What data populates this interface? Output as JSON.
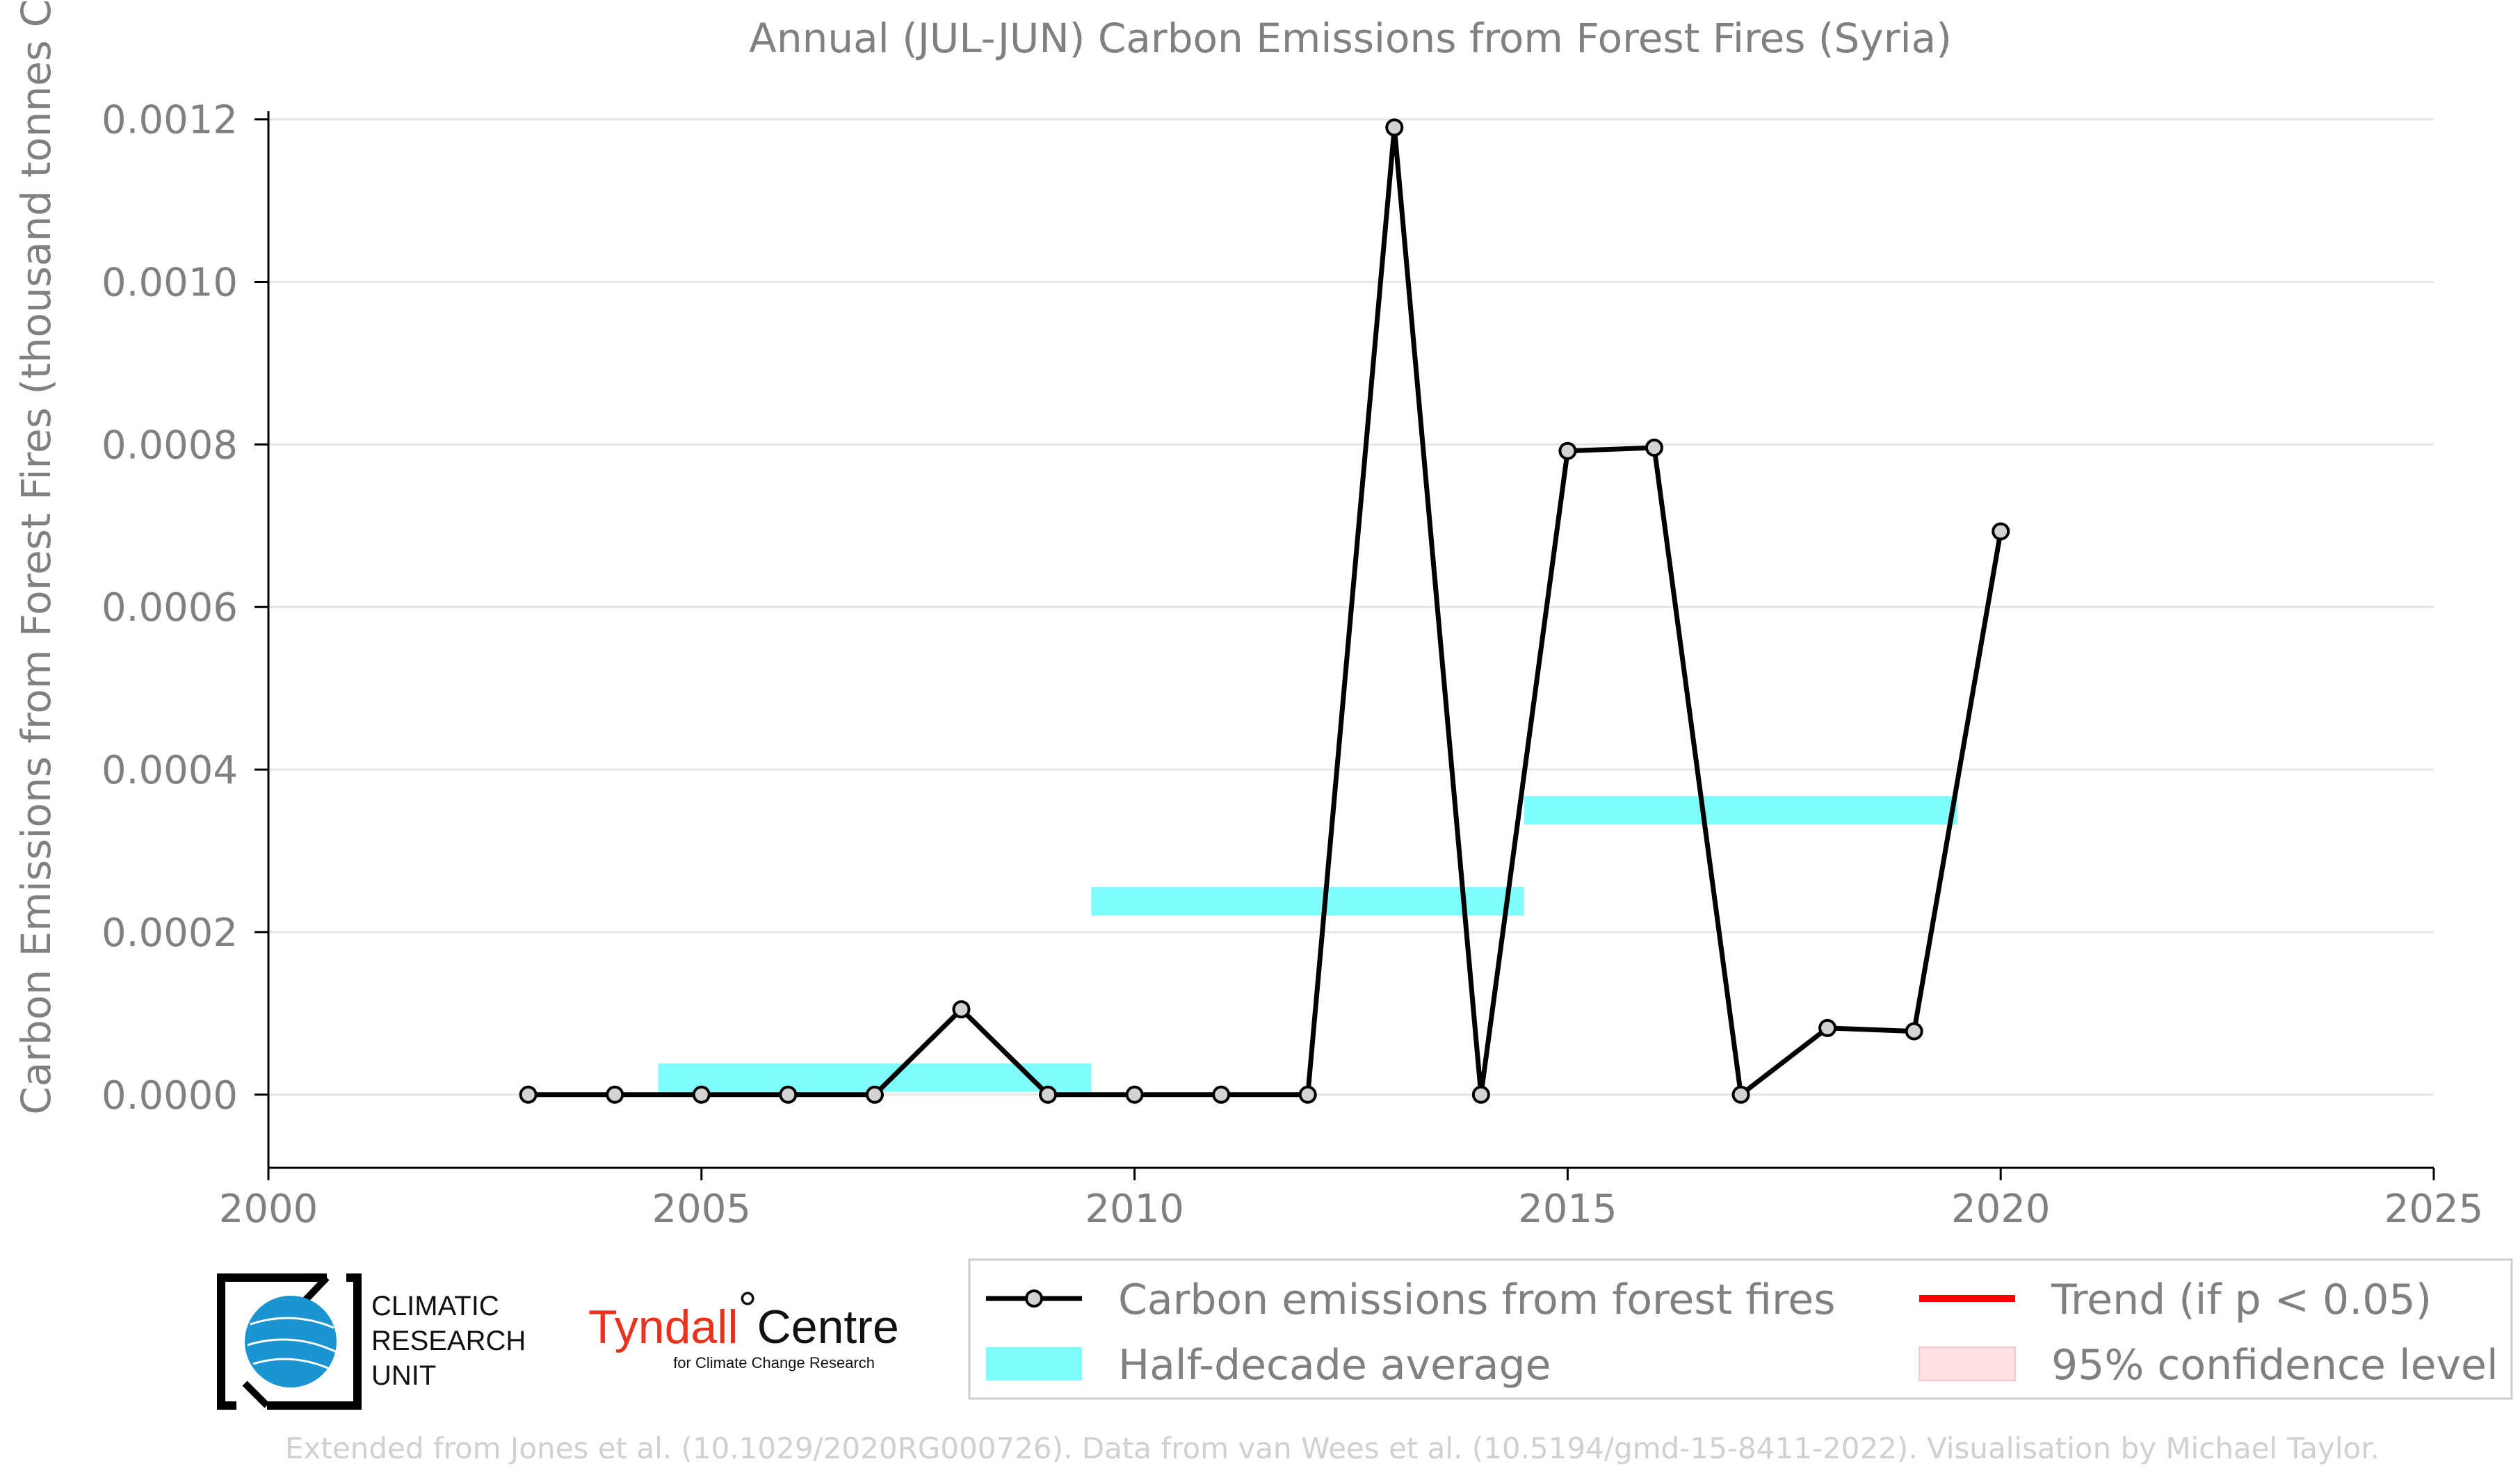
{
  "chart_data": {
    "type": "line",
    "title": "Annual (JUL-JUN) Carbon Emissions from Forest Fires (Syria)",
    "xlabel": "",
    "ylabel": "Carbon Emissions from Forest Fires (thousand tonnes C)",
    "xlim": [
      2000,
      2025
    ],
    "ylim": [
      -9e-05,
      0.00121
    ],
    "x_ticks": [
      2000,
      2005,
      2010,
      2015,
      2020,
      2025
    ],
    "x_tick_labels": [
      "2000",
      "2005",
      "2010",
      "2015",
      "2020",
      "2025"
    ],
    "y_ticks": [
      0,
      0.0002,
      0.0004,
      0.0006,
      0.0008,
      0.001,
      0.0012
    ],
    "y_tick_labels": [
      "0.0000",
      "0.0002",
      "0.0004",
      "0.0006",
      "0.0008",
      "0.0010",
      "0.0012"
    ],
    "grid": "horizontal",
    "legend_position": "bottom-right",
    "series": [
      {
        "name": "Carbon emissions from forest fires",
        "color": "#000000",
        "marker_fill": "#d3d3d3",
        "points": [
          {
            "x": 2003,
            "y": 0.0
          },
          {
            "x": 2004,
            "y": 0.0
          },
          {
            "x": 2005,
            "y": 0.0
          },
          {
            "x": 2006,
            "y": 0.0
          },
          {
            "x": 2007,
            "y": 0.0
          },
          {
            "x": 2008,
            "y": 0.000105
          },
          {
            "x": 2009,
            "y": 0.0
          },
          {
            "x": 2010,
            "y": 0.0
          },
          {
            "x": 2011,
            "y": 0.0
          },
          {
            "x": 2012,
            "y": 0.0
          },
          {
            "x": 2013,
            "y": 0.00119
          },
          {
            "x": 2014,
            "y": 0.0
          },
          {
            "x": 2015,
            "y": 0.000792
          },
          {
            "x": 2016,
            "y": 0.000796
          },
          {
            "x": 2017,
            "y": 0.0
          },
          {
            "x": 2018,
            "y": 8.2e-05
          },
          {
            "x": 2019,
            "y": 7.8e-05
          },
          {
            "x": 2020,
            "y": 0.000693
          }
        ]
      }
    ],
    "half_decade_averages": {
      "name": "Half-decade average",
      "color": "#7ffcfc",
      "bands": [
        {
          "x_start": 2004.5,
          "x_end": 2009.5,
          "y": 2.1e-05
        },
        {
          "x_start": 2009.5,
          "x_end": 2014.5,
          "y": 0.000238
        },
        {
          "x_start": 2014.5,
          "x_end": 2019.5,
          "y": 0.00035
        }
      ]
    },
    "legend": [
      {
        "label": "Carbon emissions from forest fires",
        "kind": "line-marker",
        "color": "#000000"
      },
      {
        "label": "Trend (if p < 0.05)",
        "kind": "line",
        "color": "#ff0000"
      },
      {
        "label": "Half-decade average",
        "kind": "band",
        "color": "#7ffcfc"
      },
      {
        "label": "95% confidence level",
        "kind": "band",
        "color": "#ffe0e3"
      }
    ]
  },
  "logos": {
    "cru_lines": [
      "CLIMATIC",
      "RESEARCH",
      "UNIT"
    ],
    "tyndall_main": "Tyndall",
    "tyndall_degree": "°",
    "tyndall_centre": "Centre",
    "tyndall_sub": "for Climate Change Research"
  },
  "credit": "Extended from Jones et al. (10.1029/2020RG000726). Data from van Wees et al. (10.5194/gmd-15-8411-2022). Visualisation by Michael Taylor."
}
